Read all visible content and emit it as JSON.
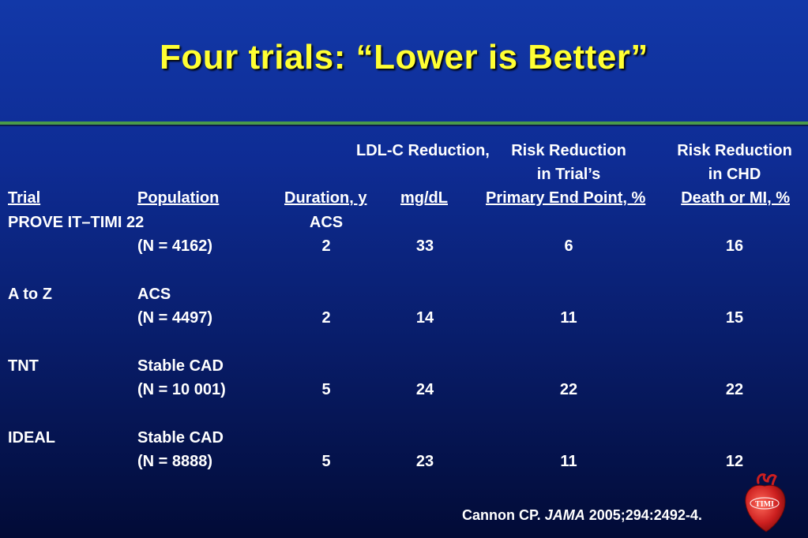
{
  "title": "Four trials:   “Lower is Better”",
  "header": {
    "ldl_line1": "LDL-C Reduction,",
    "trial_risk_line1": "Risk Reduction",
    "trial_risk_line2": "in Trial’s",
    "chd_risk_line1": "Risk Reduction",
    "chd_risk_line2": "in CHD",
    "col_trial": "Trial",
    "col_population": "Population",
    "col_duration": "Duration, y",
    "col_ldl": "mg/dL",
    "col_primary": "Primary End Point, %",
    "col_chd": "Death or MI, %"
  },
  "rows": [
    {
      "trial": "PROVE IT–TIMI 22",
      "population": "ACS",
      "n": "(N = 4162)",
      "duration": "2",
      "ldl": "33",
      "primary": "6",
      "chd": "16"
    },
    {
      "trial": "A to Z",
      "population": "ACS",
      "n": "(N = 4497)",
      "duration": "2",
      "ldl": "14",
      "primary": "11",
      "chd": "15"
    },
    {
      "trial": "TNT",
      "population": "Stable CAD",
      "n": "(N = 10 001)",
      "duration": "5",
      "ldl": "24",
      "primary": "22",
      "chd": "22"
    },
    {
      "trial": "IDEAL",
      "population": "Stable CAD",
      "n": "(N = 8888)",
      "duration": "5",
      "ldl": "23",
      "primary": "11",
      "chd": "12"
    }
  ],
  "citation": {
    "authors": "Cannon CP.",
    "journal": "JAMA",
    "details": "2005;294:2492-4."
  },
  "logo": {
    "text": "TIMI",
    "color": "#cc1f1f"
  },
  "colors": {
    "title": "#ffff33",
    "rule": "#4a9a4a",
    "background_top": "#1238a8",
    "background_bottom": "#020b36"
  }
}
